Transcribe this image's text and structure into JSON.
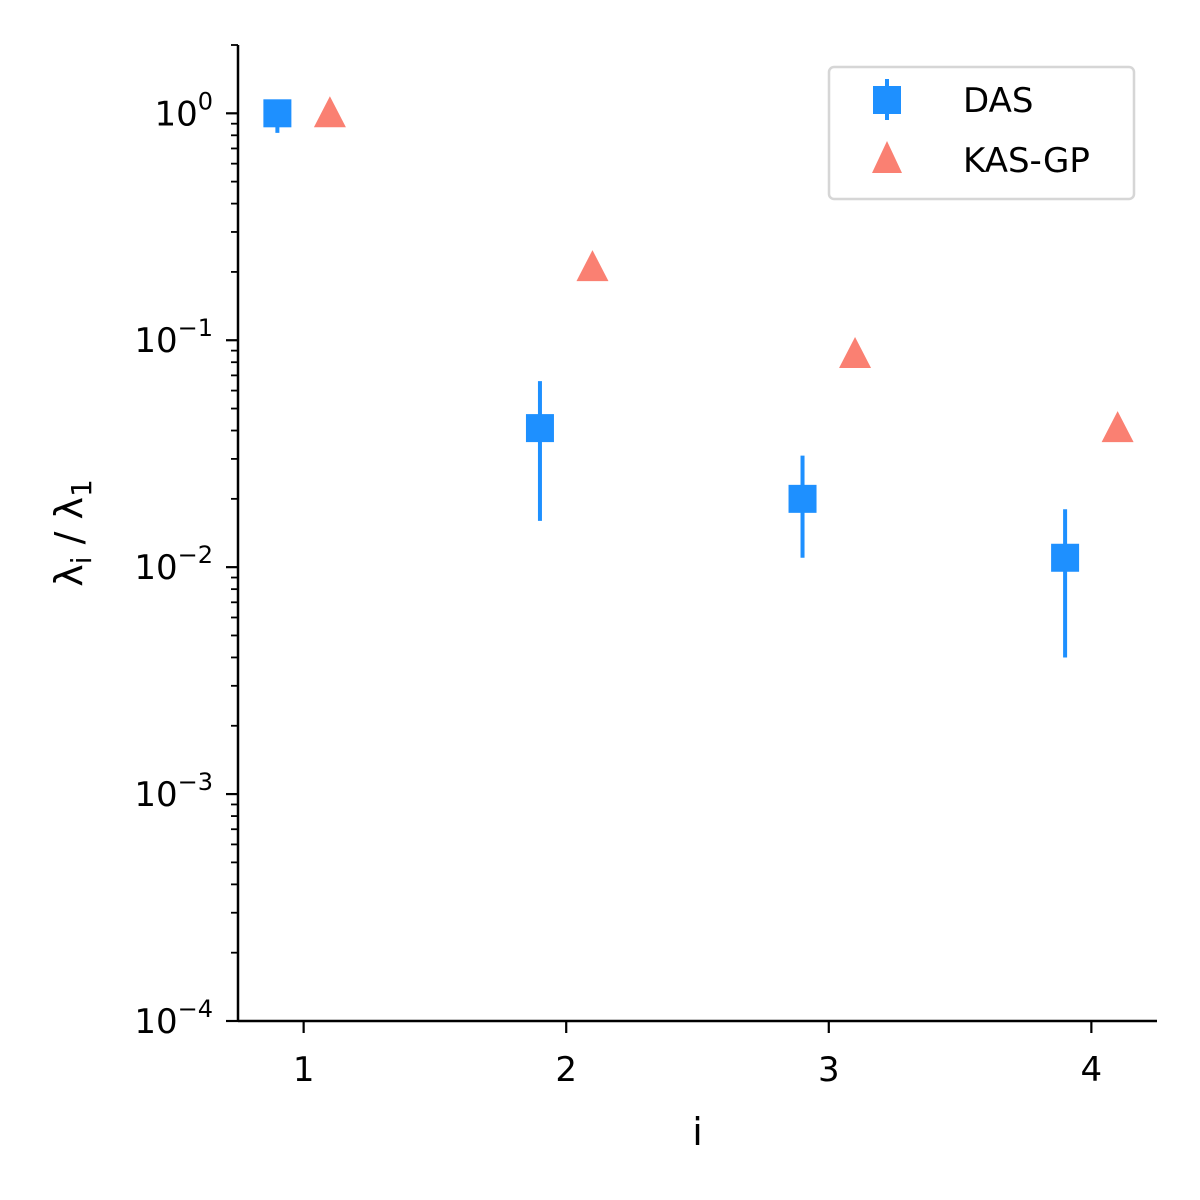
{
  "chart_data": {
    "type": "scatter",
    "xlabel": "i",
    "ylabel": "λ_i / λ_1",
    "x_ticks": [
      1,
      2,
      3,
      4
    ],
    "xlim": [
      0.75,
      4.25
    ],
    "y_scale": "log",
    "ylim": [
      0.0001,
      2.0
    ],
    "y_ticks": [
      {
        "value": 1,
        "base": "10",
        "exp": "0"
      },
      {
        "value": 0.1,
        "base": "10",
        "exp": "−1"
      },
      {
        "value": 0.01,
        "base": "10",
        "exp": "−2"
      },
      {
        "value": 0.001,
        "base": "10",
        "exp": "−3"
      },
      {
        "value": 0.0001,
        "base": "10",
        "exp": "−4"
      }
    ],
    "legend": {
      "position": "top-right"
    },
    "series": [
      {
        "name": "DAS",
        "marker": "square",
        "color": "#1e90ff",
        "error_bars": true,
        "points": [
          {
            "x": 0.9,
            "y": 1.0,
            "y_low": 0.82,
            "y_high": 1.0
          },
          {
            "x": 1.9,
            "y": 0.041,
            "y_low": 0.016,
            "y_high": 0.066
          },
          {
            "x": 2.9,
            "y": 0.02,
            "y_low": 0.011,
            "y_high": 0.031
          },
          {
            "x": 3.9,
            "y": 0.011,
            "y_low": 0.004,
            "y_high": 0.018
          }
        ]
      },
      {
        "name": "KAS-GP",
        "marker": "triangle",
        "color": "#fa8072",
        "error_bars": false,
        "points": [
          {
            "x": 1.1,
            "y": 1.0
          },
          {
            "x": 2.1,
            "y": 0.21
          },
          {
            "x": 3.1,
            "y": 0.087
          },
          {
            "x": 4.1,
            "y": 0.041
          }
        ]
      }
    ]
  }
}
